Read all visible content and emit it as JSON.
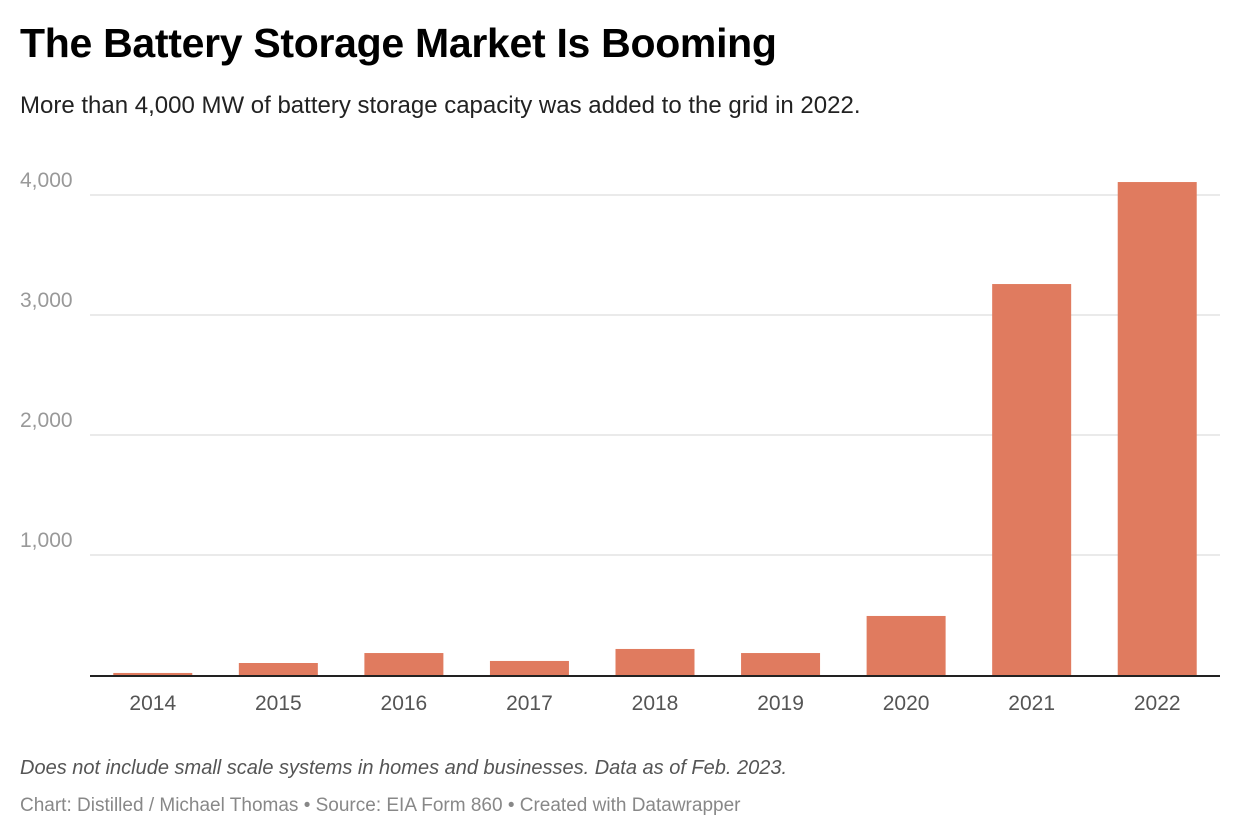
{
  "title": "The Battery Storage Market Is Booming",
  "subtitle": "More than 4,000 MW of battery storage capacity was added to the grid in 2022.",
  "note": "Does not include small scale systems in homes and businesses. Data as of Feb. 2023.",
  "credits": "Chart: Distilled / Michael Thomas • Source: EIA Form 860 • Created with Datawrapper",
  "chart_data": {
    "type": "bar",
    "categories": [
      "2014",
      "2015",
      "2016",
      "2017",
      "2018",
      "2019",
      "2020",
      "2021",
      "2022"
    ],
    "values": [
      17,
      100,
      183,
      117,
      217,
      183,
      492,
      3258,
      4108
    ],
    "ylim": [
      0,
      4000
    ],
    "yticks": [
      1000,
      2000,
      3000,
      4000
    ],
    "ytick_labels": [
      "1,000",
      "2,000",
      "3,000",
      "4,000"
    ],
    "grid": true,
    "bar_color": "#e07b5f"
  }
}
